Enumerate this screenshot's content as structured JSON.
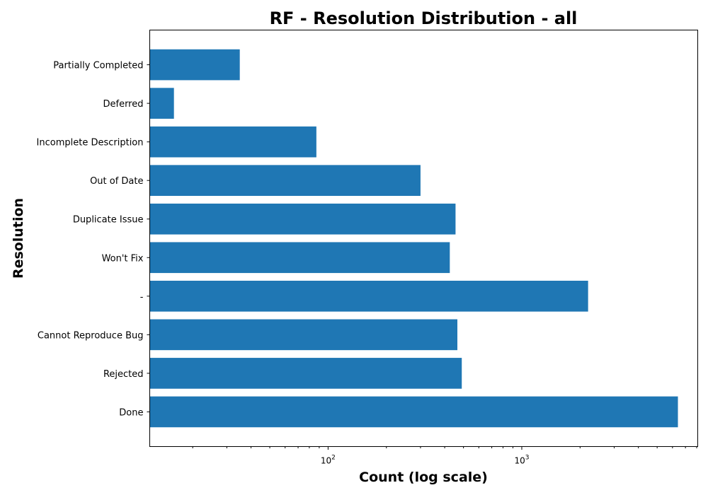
{
  "chart_data": {
    "type": "bar",
    "orientation": "horizontal",
    "title": "RF - Resolution Distribution - all",
    "xlabel": "Count (log scale)",
    "ylabel": "Resolution",
    "x_scale": "log",
    "xlim": [
      12,
      8100
    ],
    "categories": [
      "Done",
      "Rejected",
      "Cannot Reproduce Bug",
      "-",
      "Won't Fix",
      "Duplicate Issue",
      "Out of Date",
      "Incomplete Description",
      "Deferred",
      "Partially Completed"
    ],
    "values": [
      6400,
      490,
      465,
      2200,
      425,
      455,
      300,
      87,
      16,
      35
    ],
    "x_ticks": [
      {
        "value": 100,
        "base": "10",
        "exp": "2"
      },
      {
        "value": 1000,
        "base": "10",
        "exp": "3"
      }
    ],
    "bar_color": "#1f77b4",
    "grid": false,
    "legend": "none"
  }
}
